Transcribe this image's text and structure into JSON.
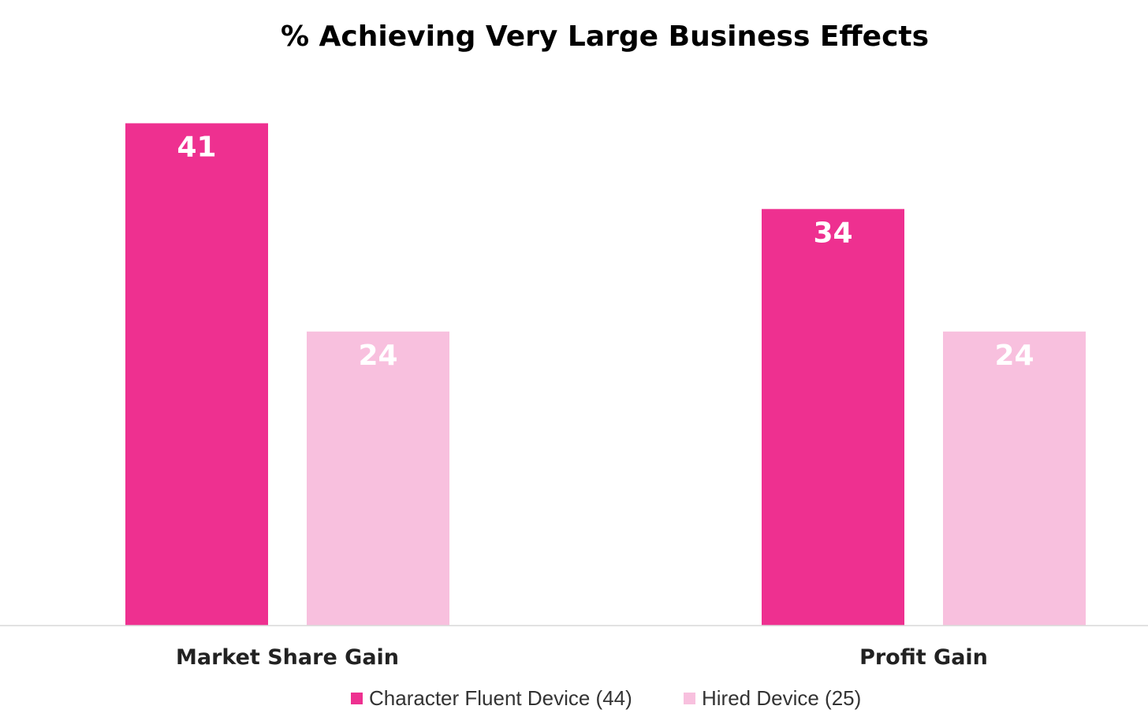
{
  "chart_data": {
    "type": "bar",
    "title": "% Achieving Very Large Business Effects",
    "categories": [
      "Market Share Gain",
      "Profit Gain"
    ],
    "series": [
      {
        "name": "Character Fluent Device (44)",
        "values": [
          41,
          34
        ],
        "color": "#ee3090",
        "label_color": "#ffffff"
      },
      {
        "name": "Hired Device (25)",
        "values": [
          24,
          24
        ],
        "color": "#f8c0de",
        "label_color": "#ffffff"
      }
    ],
    "ylim": [
      0,
      45
    ],
    "grid": false,
    "y_axis_visible": false,
    "data_labels": true,
    "legend_position": "bottom-center",
    "xlabel": "",
    "ylabel": ""
  }
}
